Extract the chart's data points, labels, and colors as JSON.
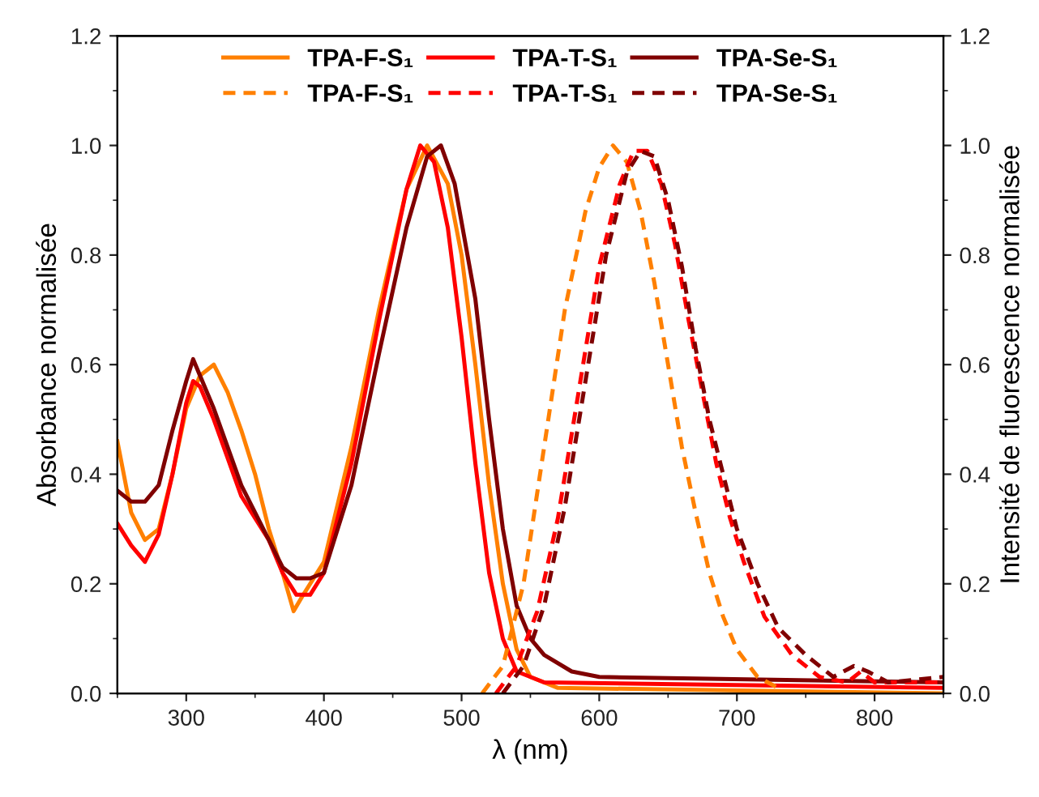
{
  "chart_data": {
    "type": "line",
    "xlabel": "λ (nm)",
    "ylabel": "Absorbance normalisée",
    "y2label": "Intensité de fluorescence normalisée",
    "xlim": [
      250,
      850
    ],
    "xticks": [
      300,
      400,
      500,
      600,
      700,
      800
    ],
    "ylim": [
      0,
      1.2
    ],
    "yticks": [
      {
        "value": 0,
        "label": "0.0"
      },
      0.2,
      0.4,
      0.6,
      0.8,
      {
        "value": 1,
        "label": "1.0"
      },
      1.2
    ],
    "y2lim": [
      0,
      1.2
    ],
    "y2ticks": [
      {
        "value": 0,
        "label": "0.0"
      },
      0.2,
      0.4,
      0.6,
      0.8,
      {
        "value": 1,
        "label": "1.0"
      },
      1.2
    ],
    "grid": false,
    "legend": "top",
    "marker": "none",
    "series": [
      {
        "name": "TPA-F-S₁",
        "color": "#ff8000",
        "line_style": "solid",
        "x": [
          250,
          260,
          270,
          280,
          290,
          300,
          310,
          320,
          330,
          340,
          350,
          360,
          370,
          378,
          385,
          400,
          420,
          440,
          460,
          475,
          490,
          500,
          510,
          520,
          530,
          540,
          550,
          570,
          850
        ],
        "values": [
          0.46,
          0.33,
          0.28,
          0.3,
          0.4,
          0.52,
          0.58,
          0.6,
          0.55,
          0.48,
          0.4,
          0.3,
          0.22,
          0.15,
          0.18,
          0.24,
          0.45,
          0.7,
          0.92,
          1.0,
          0.93,
          0.8,
          0.6,
          0.38,
          0.2,
          0.08,
          0.03,
          0.01,
          0.0
        ]
      },
      {
        "name": "TPA-T-S₁",
        "color": "#ff0000",
        "line_style": "solid",
        "x": [
          250,
          260,
          270,
          280,
          290,
          300,
          305,
          310,
          320,
          330,
          340,
          350,
          360,
          370,
          380,
          390,
          400,
          420,
          440,
          460,
          470,
          480,
          490,
          500,
          510,
          520,
          530,
          540,
          560,
          850
        ],
        "values": [
          0.31,
          0.27,
          0.24,
          0.29,
          0.4,
          0.53,
          0.57,
          0.56,
          0.5,
          0.43,
          0.36,
          0.32,
          0.28,
          0.22,
          0.18,
          0.18,
          0.22,
          0.42,
          0.68,
          0.92,
          1.0,
          0.97,
          0.85,
          0.65,
          0.42,
          0.22,
          0.1,
          0.04,
          0.02,
          0.01
        ]
      },
      {
        "name": "TPA-Se-S₁",
        "color": "#800000",
        "line_style": "solid",
        "x": [
          250,
          260,
          270,
          280,
          290,
          300,
          305,
          310,
          320,
          330,
          340,
          350,
          360,
          370,
          380,
          390,
          400,
          420,
          440,
          460,
          475,
          485,
          495,
          510,
          520,
          530,
          540,
          550,
          560,
          580,
          600,
          850
        ],
        "values": [
          0.37,
          0.35,
          0.35,
          0.38,
          0.48,
          0.57,
          0.61,
          0.58,
          0.52,
          0.45,
          0.38,
          0.33,
          0.28,
          0.23,
          0.21,
          0.21,
          0.22,
          0.38,
          0.62,
          0.85,
          0.98,
          1.0,
          0.93,
          0.72,
          0.5,
          0.3,
          0.16,
          0.1,
          0.07,
          0.04,
          0.03,
          0.02
        ]
      },
      {
        "name": "TPA-F-S₁",
        "color": "#ff8000",
        "line_style": "dashed",
        "axis": "y2",
        "x": [
          515,
          530,
          545,
          560,
          575,
          590,
          600,
          610,
          620,
          630,
          640,
          650,
          660,
          670,
          680,
          690,
          700,
          715,
          730
        ],
        "values": [
          0.0,
          0.05,
          0.2,
          0.45,
          0.7,
          0.88,
          0.96,
          1.0,
          0.97,
          0.88,
          0.75,
          0.6,
          0.45,
          0.33,
          0.22,
          0.14,
          0.08,
          0.03,
          0.01
        ]
      },
      {
        "name": "TPA-T-S₁",
        "color": "#ff0000",
        "line_style": "dashed",
        "axis": "y2",
        "x": [
          525,
          540,
          555,
          570,
          585,
          600,
          615,
          625,
          635,
          645,
          655,
          665,
          675,
          685,
          695,
          705,
          720,
          740,
          760,
          780,
          790,
          800,
          850
        ],
        "values": [
          0.0,
          0.05,
          0.15,
          0.32,
          0.55,
          0.78,
          0.93,
          0.99,
          0.99,
          0.93,
          0.82,
          0.68,
          0.55,
          0.42,
          0.32,
          0.24,
          0.14,
          0.07,
          0.03,
          0.02,
          0.04,
          0.02,
          0.02
        ]
      },
      {
        "name": "TPA-Se-S₁",
        "color": "#800000",
        "line_style": "dashed",
        "axis": "y2",
        "x": [
          530,
          545,
          560,
          575,
          590,
          605,
          620,
          630,
          640,
          650,
          660,
          670,
          680,
          690,
          700,
          715,
          730,
          750,
          770,
          785,
          795,
          810,
          850
        ],
        "values": [
          0.0,
          0.05,
          0.16,
          0.34,
          0.57,
          0.8,
          0.95,
          0.99,
          0.98,
          0.9,
          0.78,
          0.63,
          0.5,
          0.4,
          0.3,
          0.2,
          0.12,
          0.07,
          0.03,
          0.05,
          0.04,
          0.02,
          0.03
        ]
      }
    ]
  }
}
